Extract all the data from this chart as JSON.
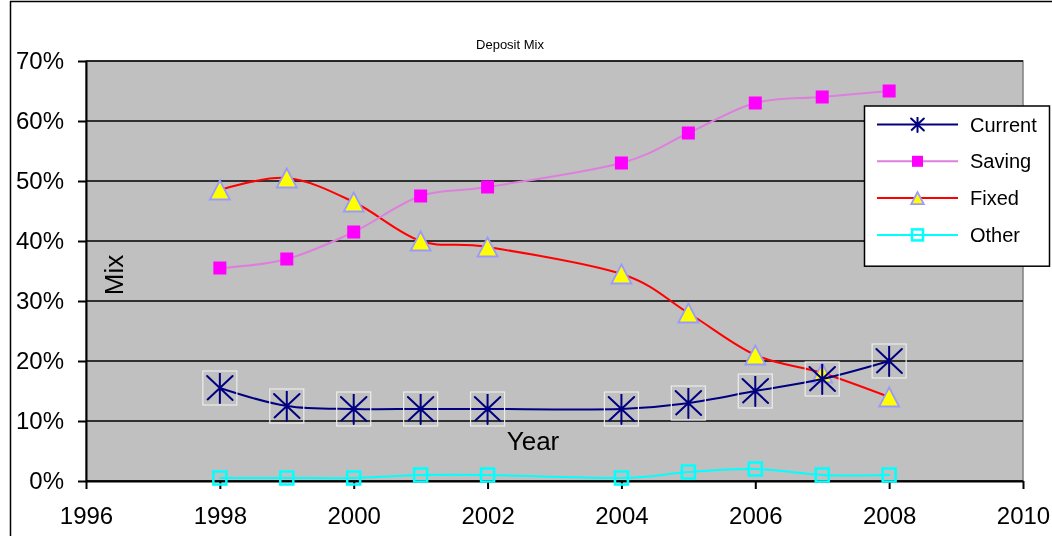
{
  "chart_data": {
    "type": "line",
    "title": "Deposit Mix",
    "xlabel": "Year",
    "ylabel": "Mix",
    "x": [
      1998,
      1999,
      2000,
      2001,
      2002,
      2004,
      2005,
      2006,
      2007,
      2008
    ],
    "series": [
      {
        "name": "Current",
        "color": "#000080",
        "marker": "cross",
        "values": [
          15.5,
          12.5,
          12,
          12,
          12,
          12,
          13,
          15,
          17,
          20
        ]
      },
      {
        "name": "Saving",
        "color": "#dd80dd",
        "marker": "square",
        "colors": [
          "#ff00ff",
          "#ff00ff",
          "#ff00ff",
          "#ff00ff",
          "#ff00ff",
          "#ff00ff",
          "#ff00ff",
          "#ff00ff",
          "#ff00ff",
          "#ff00ff"
        ],
        "values": [
          35.5,
          37,
          41.5,
          47.5,
          49,
          53,
          58,
          63,
          64,
          65
        ]
      },
      {
        "name": "Fixed",
        "color": "#ff0000",
        "marker": "triangle",
        "colors": [
          "#ffff00",
          "#ffff00",
          "#ffff00",
          "#ffff00",
          "#ffff00",
          "#ffff00",
          "#ffff00",
          "#ffff00",
          "#ffff00",
          "#ffff00"
        ],
        "values": [
          48.5,
          50.5,
          46.5,
          40,
          39,
          34.5,
          28,
          21,
          18,
          14
        ]
      },
      {
        "name": "Other",
        "color": "#00ffff",
        "marker": "square",
        "values": [
          0.5,
          0.5,
          0.5,
          1,
          1,
          0.5,
          1.5,
          2,
          1,
          1
        ]
      }
    ],
    "xlim": [
      1996,
      2010
    ],
    "xticks": [
      1996,
      1998,
      2000,
      2002,
      2004,
      2006,
      2008,
      2010
    ],
    "ylim": [
      0,
      70
    ],
    "yticks": [
      {
        "value": 0,
        "label": "0%"
      },
      {
        "value": 10,
        "label": "10%"
      },
      {
        "value": 20,
        "label": "20%"
      },
      {
        "value": 30,
        "label": "30%"
      },
      {
        "value": 40,
        "label": "40%"
      },
      {
        "value": 50,
        "label": "50%"
      },
      {
        "value": 60,
        "label": "60%"
      },
      {
        "value": 70,
        "label": "70%"
      }
    ],
    "grid": "y",
    "legend": "right"
  }
}
